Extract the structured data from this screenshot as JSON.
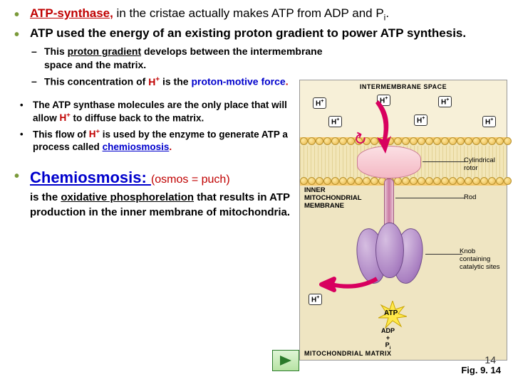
{
  "bullets": {
    "atp_synthase": {
      "term": "ATP-synthase,",
      "rest_a": " in the cristae actually makes ATP from ADP and P",
      "sub_i": "i",
      "rest_b": "."
    },
    "energy": "ATP used the energy of an existing proton gradient to power ATP synthesis.",
    "grad_a": "This ",
    "grad_term": "proton gradient",
    "grad_b": " develops between the intermembrane space and the matrix.",
    "conc_a": "This concentration of ",
    "conc_h": "H",
    "conc_plus": "+",
    "conc_b": " is the ",
    "conc_c": "proton-motive force",
    "conc_dot": ".",
    "only_a": "The ATP synthase molecules are the only place that will allow ",
    "only_h": "H",
    "only_plus": "+",
    "only_b": " to diffuse back to the matrix.",
    "flow_a": "This flow of ",
    "flow_h": "H",
    "flow_plus": "+",
    "flow_b": " is used by the enzyme to generate ATP a process called ",
    "flow_c": "chemiosmosis",
    "flow_dot": ".",
    "chemi_term": "Chemiosmosis: ",
    "chemi_par": "(osmos = puch)",
    "chemi_def_a": "is the ",
    "chemi_def_b": "oxidative phosphorelation",
    "chemi_def_c": " that results in ATP production in the inner membrane of mitochondria."
  },
  "diagram": {
    "top_label": "INTERMEMBRANE SPACE",
    "hplus": "H",
    "plus": "+",
    "inner_label": "INNER MITOCHONDRIAL MEMBRANE",
    "rotor_label": "Cylindrical rotor",
    "rod_label": "Rod",
    "knob_label": "Knob containing catalytic sites",
    "matrix_label": "MITOCHONDRIAL MATRIX",
    "atp": "ATP",
    "adp_a": "ADP",
    "adp_b": "+",
    "adp_c": "P",
    "adp_i": "i",
    "fig": "Fig. 9. 14",
    "colors": {
      "bg": "#f7f0d8",
      "matrix": "#efe5c2",
      "arrow": "#d8005f",
      "lipid_head": "#e8b74a",
      "rotor": "#f4b8c4",
      "knob": "#a97fc1",
      "burst": "#ffe94a"
    }
  },
  "nav": {
    "slidenum": "14"
  }
}
